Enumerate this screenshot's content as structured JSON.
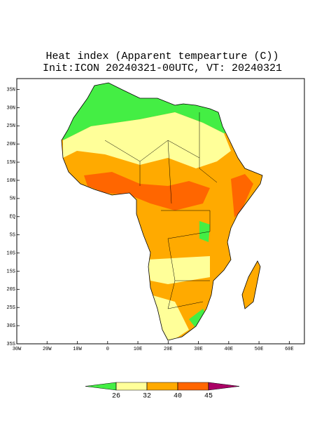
{
  "chart_data": {
    "type": "map",
    "title": "Heat index (Apparent tempearture (C))",
    "subtitle": "Init:ICON 20240321-00UTC, VT: 20240321",
    "xlim": [
      -30,
      65
    ],
    "ylim": [
      -35,
      38
    ],
    "xticks": [
      {
        "value": -30,
        "label": "30W"
      },
      {
        "value": -20,
        "label": "20W"
      },
      {
        "value": -10,
        "label": "10W"
      },
      0,
      {
        "value": 10,
        "label": "10E"
      },
      {
        "value": 20,
        "label": "20E"
      },
      {
        "value": 30,
        "label": "30E"
      },
      {
        "value": 40,
        "label": "40E"
      },
      {
        "value": 50,
        "label": "50E"
      },
      {
        "value": 60,
        "label": "60E"
      }
    ],
    "yticks": [
      {
        "value": 35,
        "label": "35N"
      },
      {
        "value": 30,
        "label": "30N"
      },
      {
        "value": 25,
        "label": "25N"
      },
      {
        "value": 20,
        "label": "20N"
      },
      {
        "value": 15,
        "label": "15N"
      },
      {
        "value": 10,
        "label": "10N"
      },
      {
        "value": 5,
        "label": "5N"
      },
      {
        "value": 0,
        "label": "EQ"
      },
      {
        "value": -5,
        "label": "5S"
      },
      {
        "value": -10,
        "label": "10S"
      },
      {
        "value": -15,
        "label": "15S"
      },
      {
        "value": -20,
        "label": "20S"
      },
      {
        "value": -25,
        "label": "25S"
      },
      {
        "value": -30,
        "label": "30S"
      },
      {
        "value": -35,
        "label": "35S"
      }
    ],
    "colorbar": {
      "levels": [
        26,
        32,
        40,
        45
      ],
      "colors": [
        "#44ee44",
        "#ffff99",
        "#ffaa00",
        "#ff6600",
        "#aa0066"
      ]
    }
  }
}
